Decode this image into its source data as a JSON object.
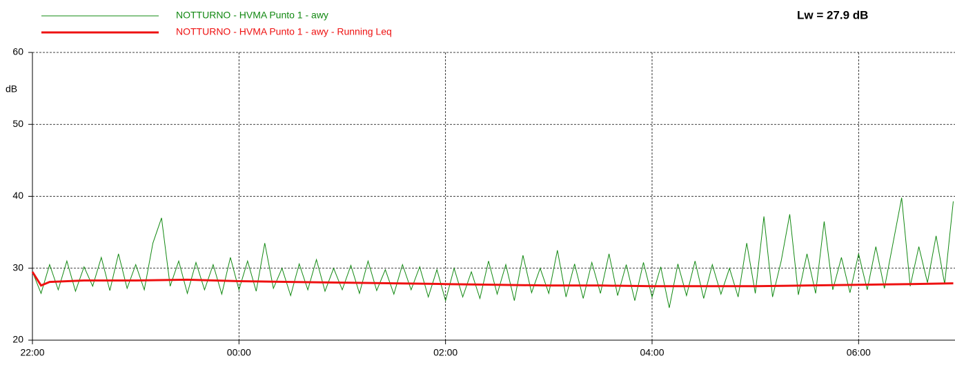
{
  "chart_data": {
    "type": "line",
    "annotation": "Lw = 27.9 dB",
    "y_label": "dB",
    "xlim": [
      "22:00",
      "06:56"
    ],
    "xticks": [
      "22:00",
      "00:00",
      "02:00",
      "04:00",
      "06:00"
    ],
    "ylim": [
      20,
      60
    ],
    "yticks": [
      20,
      30,
      40,
      50,
      60
    ],
    "grid": true,
    "series": [
      {
        "name": "NOTTURNO - HVMA Punto 1 - awy",
        "color": "#118811",
        "x": [
          "22:00",
          "22:05",
          "22:10",
          "22:15",
          "22:20",
          "22:25",
          "22:30",
          "22:35",
          "22:40",
          "22:45",
          "22:50",
          "22:55",
          "23:00",
          "23:05",
          "23:10",
          "23:15",
          "23:20",
          "23:25",
          "23:30",
          "23:35",
          "23:40",
          "23:45",
          "23:50",
          "23:55",
          "00:00",
          "00:05",
          "00:10",
          "00:15",
          "00:20",
          "00:25",
          "00:30",
          "00:35",
          "00:40",
          "00:45",
          "00:50",
          "00:55",
          "01:00",
          "01:05",
          "01:10",
          "01:15",
          "01:20",
          "01:25",
          "01:30",
          "01:35",
          "01:40",
          "01:45",
          "01:50",
          "01:55",
          "02:00",
          "02:05",
          "02:10",
          "02:15",
          "02:20",
          "02:25",
          "02:30",
          "02:35",
          "02:40",
          "02:45",
          "02:50",
          "02:55",
          "03:00",
          "03:05",
          "03:10",
          "03:15",
          "03:20",
          "03:25",
          "03:30",
          "03:35",
          "03:40",
          "03:45",
          "03:50",
          "03:55",
          "04:00",
          "04:05",
          "04:10",
          "04:15",
          "04:20",
          "04:25",
          "04:30",
          "04:35",
          "04:40",
          "04:45",
          "04:50",
          "04:55",
          "05:00",
          "05:05",
          "05:10",
          "05:15",
          "05:20",
          "05:25",
          "05:30",
          "05:35",
          "05:40",
          "05:45",
          "05:50",
          "05:55",
          "06:00",
          "06:05",
          "06:10",
          "06:15",
          "06:20",
          "06:25",
          "06:30",
          "06:35",
          "06:40",
          "06:45",
          "06:50",
          "06:55"
        ],
        "values": [
          29.5,
          26.5,
          30.5,
          27,
          31,
          26.8,
          30.2,
          27.5,
          31.5,
          26.9,
          32,
          27.2,
          30.5,
          27,
          33.5,
          37,
          27.5,
          31,
          26.5,
          30.8,
          27,
          30.5,
          26.4,
          31.5,
          27,
          31,
          26.8,
          33.5,
          27.2,
          30,
          26.2,
          30.6,
          27,
          31.2,
          26.8,
          30,
          27,
          30.4,
          26.5,
          31,
          26.9,
          29.8,
          26.4,
          30.5,
          27,
          30.2,
          26,
          29.8,
          25.5,
          30,
          26,
          29.5,
          25.8,
          31,
          26.4,
          30.5,
          25.5,
          31.8,
          26.6,
          30,
          26.5,
          32.5,
          26,
          30.6,
          25.8,
          30.8,
          26.5,
          32,
          26.2,
          30.5,
          25.5,
          30.8,
          26,
          30.2,
          24.5,
          30.6,
          26.2,
          31,
          25.8,
          30.5,
          26.4,
          30,
          26,
          33.5,
          26.5,
          37.2,
          26,
          31,
          37.5,
          26.3,
          32,
          26.5,
          36.5,
          27,
          31.5,
          26.6,
          32,
          27,
          33,
          27.2,
          33.5,
          39.8,
          27.5,
          33,
          28,
          34.5,
          27.8,
          39.3
        ]
      },
      {
        "name": "NOTTURNO - HVMA Punto 1 - awy - Running Leq",
        "color": "#ee1111",
        "x": [
          "22:00",
          "22:05",
          "22:10",
          "22:30",
          "23:00",
          "23:30",
          "00:00",
          "00:30",
          "01:00",
          "01:30",
          "02:00",
          "02:30",
          "03:00",
          "03:30",
          "04:00",
          "04:30",
          "05:00",
          "05:30",
          "06:00",
          "06:30",
          "06:55"
        ],
        "values": [
          29.5,
          27.6,
          28.1,
          28.3,
          28.3,
          28.4,
          28.2,
          28.1,
          28,
          27.9,
          27.8,
          27.7,
          27.6,
          27.6,
          27.5,
          27.5,
          27.5,
          27.6,
          27.7,
          27.8,
          27.9
        ]
      }
    ]
  }
}
